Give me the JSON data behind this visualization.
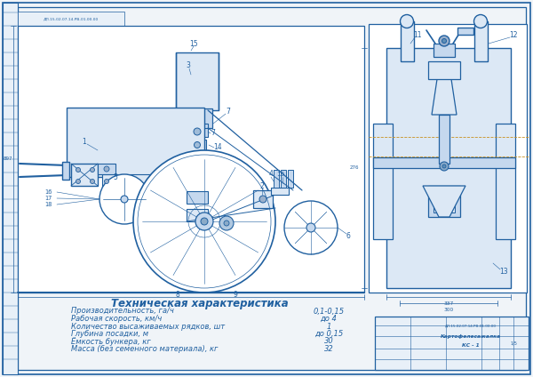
{
  "bg_color": "#f0f4f8",
  "line_color": "#2060a0",
  "light_fill": "#dce8f5",
  "mid_fill": "#c5d8ee",
  "title": "Техническая характеристика",
  "title_fontsize": 8.5,
  "specs": [
    [
      "Производительность, га/ч",
      "0,1-0,15"
    ],
    [
      "Рабочая скорость, км/ч",
      "до 4"
    ],
    [
      "Количество высаживаемых рядков, шт",
      "1"
    ],
    [
      "Глубина посадки, м",
      "до 0,15"
    ],
    [
      "Ёмкость бункера, кг",
      "30"
    ],
    [
      "Масса (без семенного материала), кг",
      "32"
    ]
  ],
  "spec_fontsize": 6.0
}
